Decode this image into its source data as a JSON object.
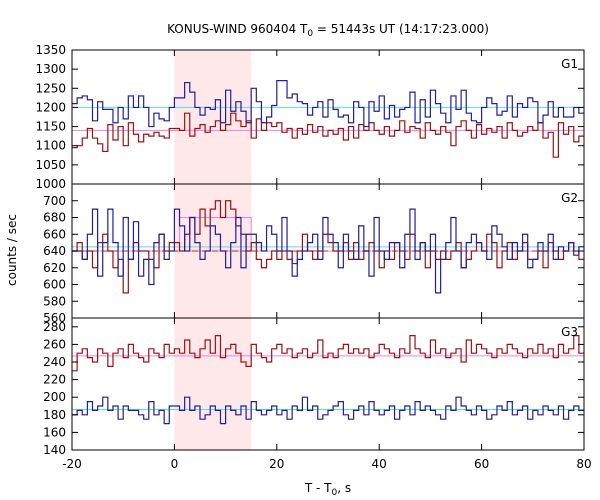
{
  "chart_data": {
    "type": "line",
    "title_main": "KONUS-WIND 960404 T",
    "title_sub": "0",
    "title_rest": " = 51443s UT (14:17:23.000)",
    "xlabel_main": "T - T",
    "xlabel_sub": "0",
    "xlabel_rest": ", s",
    "ylabel": "counts / sec",
    "xlim": [
      -20,
      80
    ],
    "x_ticks": [
      -20,
      0,
      20,
      40,
      60,
      80
    ],
    "x_tick_labels": [
      "-20",
      "0",
      "20",
      "40",
      "60",
      "80"
    ],
    "highlight_interval": [
      0,
      15
    ],
    "colors": {
      "highlight": "#ffe8ea",
      "blue": "#1f1fa0",
      "red": "#a01010",
      "cyan": "#60d8f0",
      "pink": "#f080e0",
      "dash_red": "#cc2222"
    },
    "panels": [
      {
        "label": "G1",
        "ylim": [
          1000,
          1350
        ],
        "y_ticks": [
          1000,
          1050,
          1100,
          1150,
          1200,
          1250,
          1300,
          1350
        ],
        "y_tick_labels": [
          "1000",
          "1050",
          "1100",
          "1150",
          "1200",
          "1250",
          "1300",
          "1350"
        ],
        "blue_level": 1200,
        "red_level": 1140,
        "red_box": null,
        "blue_values": [
          1210,
          1225,
          1230,
          1220,
          1165,
          1215,
          1195,
          1195,
          1160,
          1200,
          1170,
          1230,
          1200,
          1230,
          1200,
          1150,
          1185,
          1170,
          1165,
          1200,
          1225,
          1225,
          1265,
          1240,
          1200,
          1180,
          1200,
          1195,
          1220,
          1160,
          1245,
          1190,
          1215,
          1190,
          1160,
          1250,
          1215,
          1160,
          1175,
          1205,
          1270,
          1270,
          1225,
          1235,
          1215,
          1210,
          1180,
          1200,
          1215,
          1175,
          1220,
          1195,
          1175,
          1180,
          1160,
          1215,
          1200,
          1150,
          1215,
          1190,
          1230,
          1170,
          1205,
          1175,
          1195,
          1200,
          1240,
          1160,
          1220,
          1175,
          1245,
          1210,
          1185,
          1160,
          1230,
          1195,
          1245,
          1185,
          1165,
          1160,
          1200,
          1225,
          1210,
          1180,
          1190,
          1230,
          1175,
          1210,
          1200,
          1225,
          1215,
          1160,
          1180,
          1215,
          1175,
          1200,
          1175,
          1175,
          1200,
          1185
        ],
        "red_values": [
          1095,
          1100,
          1120,
          1145,
          1120,
          1105,
          1085,
          1155,
          1115,
          1150,
          1100,
          1160,
          1130,
          1110,
          1130,
          1125,
          1135,
          1125,
          1120,
          1145,
          1145,
          1140,
          1185,
          1125,
          1145,
          1155,
          1135,
          1150,
          1165,
          1140,
          1155,
          1185,
          1165,
          1150,
          1165,
          1120,
          1170,
          1140,
          1160,
          1150,
          1160,
          1135,
          1145,
          1120,
          1145,
          1130,
          1155,
          1135,
          1150,
          1125,
          1140,
          1130,
          1145,
          1115,
          1150,
          1120,
          1155,
          1140,
          1160,
          1140,
          1130,
          1150,
          1125,
          1140,
          1165,
          1135,
          1150,
          1145,
          1120,
          1160,
          1140,
          1130,
          1150,
          1135,
          1100,
          1150,
          1165,
          1140,
          1120,
          1155,
          1130,
          1145,
          1135,
          1150,
          1120,
          1160,
          1140,
          1125,
          1135,
          1150,
          1140,
          1160,
          1120,
          1135,
          1070,
          1160,
          1130,
          1150,
          1110,
          1125
        ]
      },
      {
        "label": "G2",
        "ylim": [
          560,
          720
        ],
        "y_ticks": [
          560,
          580,
          600,
          620,
          640,
          660,
          680,
          700
        ],
        "y_tick_labels": [
          "560",
          "580",
          "600",
          "620",
          "640",
          "660",
          "680",
          "700"
        ],
        "blue_level": 645,
        "red_level": 640,
        "red_box": {
          "x": [
            1,
            15
          ],
          "y": [
            640,
            680
          ],
          "top_level": 680
        },
        "blue_values": [
          640,
          640,
          630,
          660,
          690,
          610,
          650,
          690,
          650,
          610,
          680,
          630,
          675,
          610,
          630,
          600,
          650,
          660,
          630,
          640,
          690,
          670,
          640,
          680,
          650,
          630,
          640,
          670,
          660,
          640,
          620,
          650,
          680,
          620,
          660,
          660,
          650,
          640,
          670,
          660,
          640,
          680,
          640,
          610,
          630,
          640,
          650,
          660,
          630,
          680,
          660,
          650,
          620,
          660,
          640,
          630,
          670,
          640,
          610,
          680,
          640,
          630,
          650,
          650,
          620,
          660,
          690,
          630,
          650,
          640,
          660,
          590,
          630,
          650,
          680,
          640,
          620,
          650,
          660,
          650,
          640,
          630,
          670,
          660,
          645,
          630,
          650,
          640,
          660,
          620,
          630,
          650,
          640,
          660,
          630,
          645,
          640,
          650,
          635,
          645
        ],
        "red_values": [
          640,
          650,
          630,
          640,
          620,
          650,
          660,
          640,
          620,
          630,
          590,
          630,
          650,
          640,
          640,
          630,
          620,
          660,
          640,
          650,
          650,
          640,
          660,
          680,
          660,
          690,
          670,
          690,
          700,
          680,
          700,
          690,
          670,
          660,
          640,
          650,
          630,
          620,
          630,
          640,
          630,
          640,
          630,
          625,
          640,
          660,
          640,
          630,
          640,
          660,
          650,
          640,
          640,
          650,
          630,
          650,
          630,
          640,
          650,
          640,
          620,
          640,
          630,
          650,
          640,
          630,
          660,
          640,
          650,
          620,
          640,
          630,
          640,
          630,
          640,
          650,
          620,
          630,
          640,
          650,
          640,
          660,
          650,
          620,
          640,
          650,
          630,
          640,
          650,
          630,
          630,
          640,
          620,
          650,
          640,
          630,
          640,
          650,
          640,
          630
        ]
      },
      {
        "label": "G3",
        "ylim": [
          140,
          290
        ],
        "y_ticks": [
          140,
          160,
          180,
          200,
          220,
          240,
          260,
          280
        ],
        "y_tick_labels": [
          "140",
          "160",
          "180",
          "200",
          "220",
          "240",
          "260",
          "280"
        ],
        "blue_level": 186,
        "red_level": 247,
        "red_box": null,
        "blue_values": [
          180,
          185,
          180,
          195,
          185,
          190,
          200,
          185,
          190,
          175,
          190,
          185,
          185,
          180,
          175,
          195,
          180,
          185,
          170,
          190,
          190,
          185,
          200,
          185,
          190,
          175,
          180,
          190,
          185,
          170,
          190,
          185,
          180,
          190,
          175,
          195,
          185,
          180,
          185,
          190,
          180,
          185,
          175,
          190,
          185,
          200,
          185,
          190,
          175,
          180,
          185,
          190,
          195,
          180,
          175,
          185,
          190,
          180,
          195,
          185,
          180,
          185,
          190,
          175,
          185,
          190,
          180,
          195,
          185,
          190,
          185,
          180,
          175,
          190,
          185,
          200,
          190,
          185,
          180,
          190,
          185,
          175,
          180,
          190,
          185,
          195,
          180,
          185,
          190,
          175,
          185,
          180,
          190,
          185,
          180,
          190,
          175,
          185,
          190,
          185
        ],
        "red_values": [
          230,
          250,
          255,
          245,
          240,
          255,
          250,
          235,
          250,
          255,
          245,
          260,
          250,
          245,
          240,
          255,
          250,
          245,
          260,
          250,
          255,
          250,
          265,
          250,
          245,
          255,
          265,
          250,
          270,
          245,
          255,
          260,
          250,
          240,
          235,
          260,
          250,
          245,
          240,
          255,
          260,
          250,
          255,
          245,
          250,
          255,
          245,
          250,
          265,
          245,
          250,
          245,
          255,
          260,
          250,
          255,
          250,
          255,
          245,
          250,
          260,
          255,
          250,
          245,
          255,
          250,
          270,
          255,
          250,
          245,
          265,
          250,
          255,
          245,
          250,
          255,
          240,
          265,
          250,
          260,
          255,
          250,
          245,
          255,
          250,
          260,
          255,
          250,
          245,
          255,
          250,
          260,
          250,
          255,
          245,
          260,
          250,
          255,
          270,
          250
        ]
      }
    ]
  }
}
